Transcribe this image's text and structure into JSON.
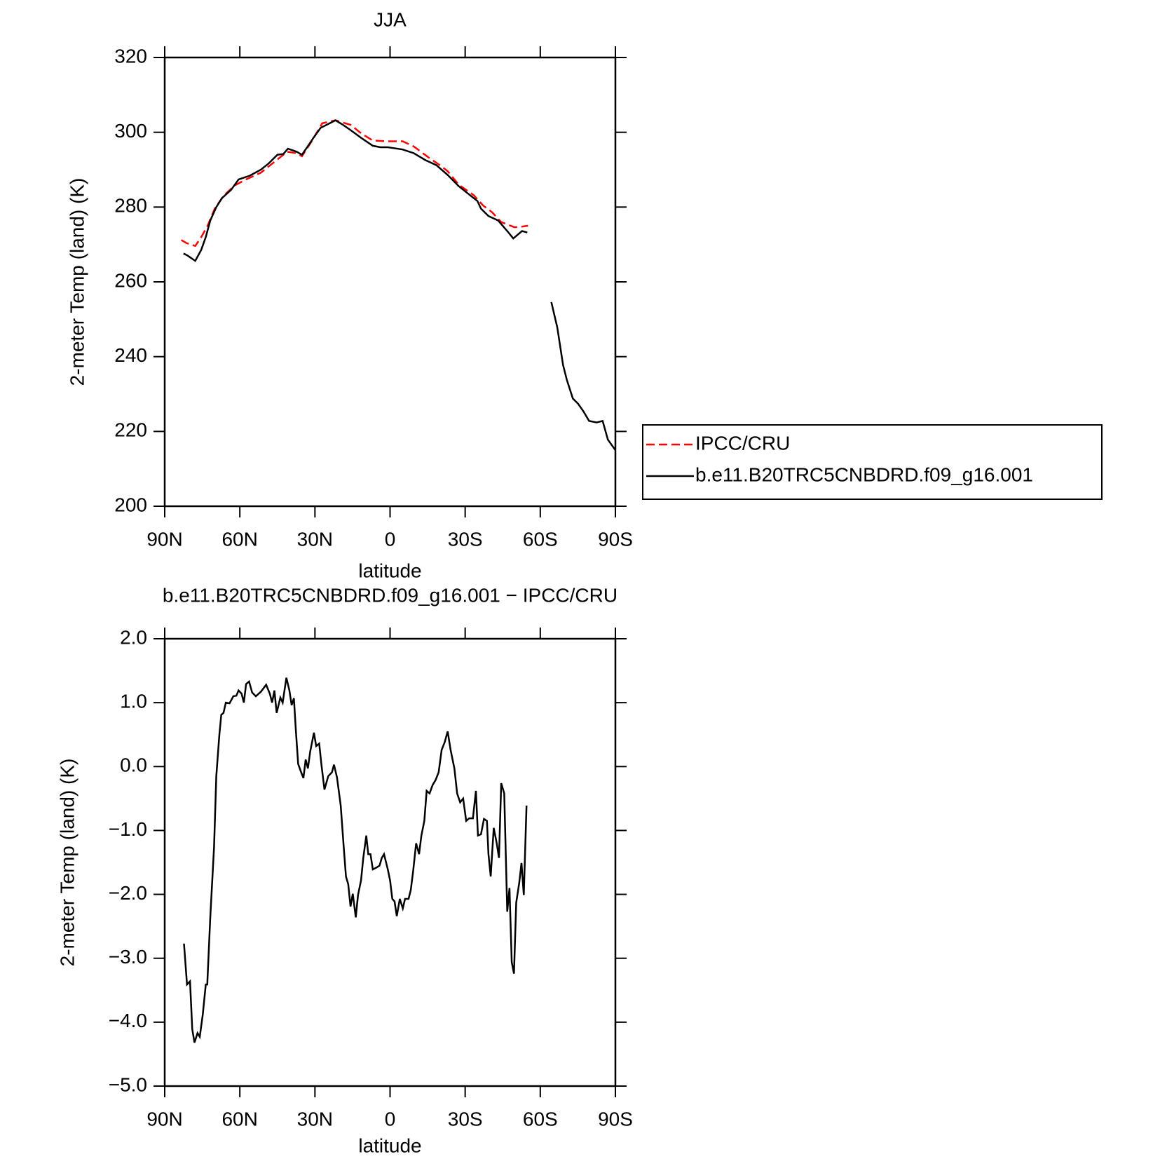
{
  "chart_data": [
    {
      "type": "line",
      "title": "JJA",
      "xlabel": "latitude",
      "ylabel": "2-meter Temp (land) (K)",
      "xlim": [
        90,
        -90
      ],
      "xticks": [
        {
          "value": 90,
          "label": "90N"
        },
        {
          "value": 60,
          "label": "60N"
        },
        {
          "value": 30,
          "label": "30N"
        },
        0,
        {
          "value": -30,
          "label": "30S"
        },
        {
          "value": -60,
          "label": "60S"
        },
        {
          "value": -90,
          "label": "90S"
        }
      ],
      "ylim": [
        200,
        320
      ],
      "yticks": [
        200,
        220,
        240,
        260,
        280,
        300,
        320
      ],
      "legend": "outside right",
      "series": [
        {
          "name": "IPCC/CRU",
          "color": "#ff0000",
          "linestyle": "dashed",
          "x": [
            83.4,
            81.4,
            77.8,
            75.4,
            73,
            70,
            66.5,
            62,
            57.5,
            51.6,
            45.6,
            41.1,
            37.3,
            35.2,
            31.3,
            27.1,
            21.8,
            15.8,
            11.3,
            6.9,
            0.9,
            -5,
            -9.5,
            -15.5,
            -19.9,
            -23,
            -27.4,
            -33.4,
            -37.2,
            -40.8,
            -44.4,
            -49.7,
            -52.7,
            -55.1
          ],
          "values": [
            271.2,
            270.4,
            269.6,
            272,
            274.8,
            279.6,
            283,
            285.8,
            287.4,
            289.2,
            292.4,
            294.8,
            294.4,
            293.6,
            297.6,
            302.4,
            303.2,
            302,
            299.6,
            297.8,
            297.6,
            297.6,
            296.2,
            293.2,
            291.2,
            289.6,
            286,
            283.2,
            280.4,
            278.6,
            276,
            274.6,
            274.8,
            275
          ]
        },
        {
          "name": "b.e11.B20TRC5CNBDRD.f09_g16.001",
          "color": "#000000",
          "linestyle": "solid",
          "x": [
            82.5,
            80.8,
            77.8,
            75.4,
            73.6,
            71.8,
            69.4,
            67.1,
            63.5,
            60.5,
            56,
            51.6,
            48.6,
            45,
            42.6,
            40.8,
            37.3,
            35.2,
            32.5,
            30.7,
            27.7,
            24.7,
            21.8,
            18.8,
            15.8,
            11.3,
            6.9,
            3.9,
            0.9,
            -5,
            -9.5,
            -14,
            -18.5,
            -23,
            -27.4,
            -31.9,
            -34.9,
            -36.3,
            -39.3,
            -43.2,
            -46.8,
            -49.2,
            -52.7,
            -54.8,
            null,
            -64.4,
            -66.8,
            -69.1,
            -70.6,
            -73,
            -75.1,
            -77.2,
            -79.5,
            -82.5,
            -84.9,
            -87,
            -90
          ],
          "values": [
            267.6,
            267,
            265.6,
            268.6,
            272,
            276.4,
            280,
            282.4,
            284.6,
            287.4,
            288.4,
            290,
            291.6,
            294,
            294.2,
            295.6,
            294.8,
            294,
            296.6,
            298.4,
            301.2,
            302.2,
            303.2,
            302,
            300.6,
            298.4,
            296.4,
            296,
            296,
            295.4,
            294.4,
            292.6,
            291.2,
            288.6,
            285.6,
            283.2,
            281.6,
            279.6,
            277.6,
            276.4,
            273.6,
            271.6,
            273.6,
            273.2,
            null,
            254.6,
            247.8,
            237.8,
            233.8,
            228.8,
            227.4,
            225.4,
            222.8,
            222.4,
            222.8,
            217.8,
            215
          ]
        }
      ]
    },
    {
      "type": "line",
      "title": "b.e11.B20TRC5CNBDRD.f09_g16.001 − IPCC/CRU",
      "xlabel": "latitude",
      "ylabel": "2-meter Temp (land) (K)",
      "xlim": [
        90,
        -90
      ],
      "xticks": [
        {
          "value": 90,
          "label": "90N"
        },
        {
          "value": 60,
          "label": "60N"
        },
        {
          "value": 30,
          "label": "30N"
        },
        0,
        {
          "value": -30,
          "label": "30S"
        },
        {
          "value": -60,
          "label": "60S"
        },
        {
          "value": -90,
          "label": "90S"
        }
      ],
      "ylim": [
        -5,
        2
      ],
      "yticks": [
        {
          "value": -5,
          "label": "−5.0"
        },
        {
          "value": -4,
          "label": "−4.0"
        },
        {
          "value": -3,
          "label": "−3.0"
        },
        {
          "value": -2,
          "label": "−2.0"
        },
        {
          "value": -1,
          "label": "−1.0"
        },
        {
          "value": 0,
          "label": "0.0"
        },
        {
          "value": 1,
          "label": "1.0"
        },
        {
          "value": 2,
          "label": "2.0"
        }
      ],
      "series": [
        {
          "color": "#000000",
          "linestyle": "solid",
          "x": [
            82.3,
            81.1,
            79.9,
            79,
            78.1,
            76.9,
            76,
            74.8,
            73.6,
            73,
            71.8,
            70.3,
            69.4,
            68.2,
            67.4,
            66.5,
            65.6,
            64.1,
            62.6,
            61.4,
            60.5,
            59.3,
            58.4,
            57.5,
            56.3,
            55.1,
            53.6,
            51.6,
            49.5,
            48,
            47.1,
            46.2,
            45.3,
            43.8,
            42.9,
            41.4,
            40.2,
            39.3,
            38.4,
            37.6,
            36.7,
            35.5,
            34.6,
            33.7,
            32.8,
            31.9,
            30.4,
            29.5,
            28.3,
            27.4,
            26.2,
            24.7,
            23.2,
            22.4,
            21.2,
            19.7,
            18.5,
            17.6,
            16.7,
            15.8,
            14.9,
            13.7,
            12.8,
            11.6,
            10.7,
            9.5,
            8.7,
            7.8,
            6.9,
            5.4,
            4.2,
            3.3,
            2.4,
            0.9,
            0,
            -0.9,
            -1.8,
            -2.7,
            -3.9,
            -5.1,
            -6,
            -7.4,
            -8.3,
            -9.2,
            -10.4,
            -11.6,
            -12.5,
            -13.7,
            -14.6,
            -15.8,
            -17,
            -18.2,
            -19.4,
            -20.6,
            -21.8,
            -23,
            -24.2,
            -25.7,
            -26.8,
            -28,
            -29.2,
            -30.4,
            -31.6,
            -33.1,
            -34.3,
            -35.1,
            -36.3,
            -37.5,
            -38.7,
            -39.3,
            -40.2,
            -41.4,
            -42.6,
            -43.5,
            -44.4,
            -45.6,
            -46.8,
            -47.7,
            -48.6,
            -49.5,
            -50.4,
            -51.6,
            -52.5,
            -53.4,
            -54.5
          ],
          "values": [
            -2.77,
            -3.41,
            -3.36,
            -4.11,
            -4.32,
            -4.17,
            -4.23,
            -3.88,
            -3.41,
            -3.41,
            -2.36,
            -1.26,
            -0.15,
            0.49,
            0.81,
            0.84,
            1.0,
            0.99,
            1.1,
            1.11,
            1.19,
            1.14,
            1.0,
            1.29,
            1.33,
            1.16,
            1.1,
            1.17,
            1.28,
            1.14,
            1.0,
            1.19,
            0.84,
            1.08,
            1.0,
            1.39,
            1.19,
            0.96,
            1.07,
            0.55,
            0.04,
            -0.09,
            -0.18,
            0.11,
            -0.03,
            0.23,
            0.53,
            0.32,
            0.36,
            0.03,
            -0.36,
            -0.15,
            -0.09,
            0.03,
            -0.17,
            -0.61,
            -1.26,
            -1.72,
            -1.84,
            -2.19,
            -1.99,
            -2.36,
            -2.01,
            -1.78,
            -1.43,
            -1.08,
            -1.37,
            -1.37,
            -1.61,
            -1.58,
            -1.55,
            -1.43,
            -1.37,
            -1.61,
            -1.78,
            -2.07,
            -2.11,
            -2.34,
            -2.07,
            -2.22,
            -2.07,
            -2.07,
            -1.93,
            -1.64,
            -1.2,
            -1.37,
            -1.08,
            -0.85,
            -0.38,
            -0.42,
            -0.29,
            -0.21,
            -0.09,
            0.26,
            0.38,
            0.55,
            0.26,
            -0.03,
            -0.42,
            -0.56,
            -0.5,
            -0.85,
            -0.81,
            -0.81,
            -0.38,
            -1.08,
            -1.06,
            -0.82,
            -0.85,
            -1.37,
            -1.72,
            -0.96,
            -1.2,
            -1.43,
            -0.26,
            -0.42,
            -2.27,
            -1.9,
            -3.06,
            -3.24,
            -2.13,
            -1.82,
            -1.51,
            -2.01,
            -0.61
          ]
        }
      ]
    }
  ]
}
